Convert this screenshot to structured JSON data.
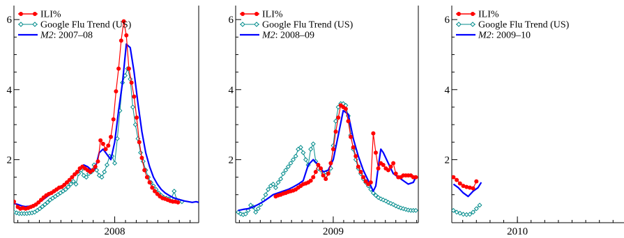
{
  "colors": {
    "ili": "#ff0000",
    "google": "#008b8b",
    "m2": "#0000ff",
    "axis": "#000000"
  },
  "chart_data": [
    {
      "type": "line",
      "xlim": [
        2007.22,
        2008.65
      ],
      "ylim": [
        0.2,
        6.4
      ],
      "ytick_labels": [
        "2",
        "4",
        "6"
      ],
      "ytick_values": [
        2,
        4,
        6
      ],
      "xtick_labels": [
        "2008"
      ],
      "xtick_values": [
        2008
      ],
      "legend": {
        "placement": "top-left",
        "entries": [
          "ILI%",
          "Google Flu Trend (US)"
        ],
        "model_italic": "M2",
        "model_suffix": ": 2007–08"
      },
      "series": [
        {
          "name": "ILI%",
          "style": "red-dots",
          "x": [
            2007.22,
            2007.25,
            2007.27,
            2007.29,
            2007.31,
            2007.33,
            2007.35,
            2007.37,
            2007.39,
            2007.41,
            2007.43,
            2007.45,
            2007.47,
            2007.49,
            2007.51,
            2007.53,
            2007.55,
            2007.57,
            2007.59,
            2007.61,
            2007.63,
            2007.65,
            2007.67,
            2007.69,
            2007.71,
            2007.73,
            2007.75,
            2007.77,
            2007.79,
            2007.81,
            2007.83,
            2007.85,
            2007.87,
            2007.89,
            2007.91,
            2007.93,
            2007.95,
            2007.97,
            2007.99,
            2008.01,
            2008.03,
            2008.05,
            2008.07,
            2008.09,
            2008.11,
            2008.13,
            2008.15,
            2008.17,
            2008.19,
            2008.21,
            2008.23,
            2008.25,
            2008.27,
            2008.29,
            2008.31,
            2008.33,
            2008.35,
            2008.37,
            2008.39,
            2008.41,
            2008.43,
            2008.45,
            2008.47,
            2008.49
          ],
          "y": [
            0.8,
            0.65,
            0.6,
            0.62,
            0.6,
            0.62,
            0.65,
            0.68,
            0.72,
            0.78,
            0.85,
            0.92,
            0.98,
            1.02,
            1.05,
            1.1,
            1.15,
            1.2,
            1.22,
            1.28,
            1.35,
            1.42,
            1.5,
            1.58,
            1.65,
            1.75,
            1.8,
            1.75,
            1.7,
            1.65,
            1.7,
            1.8,
            1.95,
            2.55,
            2.45,
            2.3,
            2.4,
            2.65,
            3.15,
            3.95,
            4.6,
            5.4,
            5.95,
            5.55,
            4.6,
            4.2,
            3.8,
            3.2,
            2.5,
            2.05,
            1.7,
            1.5,
            1.35,
            1.2,
            1.1,
            1.02,
            0.95,
            0.9,
            0.88,
            0.85,
            0.82,
            0.8,
            0.8,
            0.78
          ]
        },
        {
          "name": "Google Flu Trend (US)",
          "style": "teal-diamonds",
          "x": [
            2007.22,
            2007.24,
            2007.26,
            2007.28,
            2007.3,
            2007.32,
            2007.34,
            2007.36,
            2007.38,
            2007.4,
            2007.42,
            2007.44,
            2007.46,
            2007.48,
            2007.5,
            2007.52,
            2007.54,
            2007.56,
            2007.58,
            2007.6,
            2007.62,
            2007.64,
            2007.66,
            2007.68,
            2007.7,
            2007.72,
            2007.74,
            2007.76,
            2007.78,
            2007.8,
            2007.82,
            2007.84,
            2007.86,
            2007.88,
            2007.9,
            2007.92,
            2007.94,
            2007.96,
            2007.98,
            2008.0,
            2008.02,
            2008.04,
            2008.06,
            2008.08,
            2008.1,
            2008.12,
            2008.14,
            2008.16,
            2008.18,
            2008.2,
            2008.22,
            2008.24,
            2008.26,
            2008.28,
            2008.3,
            2008.32,
            2008.34,
            2008.36,
            2008.38,
            2008.4,
            2008.42,
            2008.44,
            2008.46,
            2008.48,
            2008.5,
            2008.52
          ],
          "y": [
            0.5,
            0.48,
            0.46,
            0.46,
            0.46,
            0.46,
            0.47,
            0.48,
            0.5,
            0.55,
            0.6,
            0.66,
            0.72,
            0.78,
            0.85,
            0.9,
            0.95,
            1.0,
            1.05,
            1.1,
            1.15,
            1.22,
            1.3,
            1.38,
            1.3,
            1.6,
            1.7,
            1.55,
            1.5,
            1.6,
            1.65,
            1.85,
            1.7,
            1.55,
            1.5,
            1.65,
            1.85,
            2.1,
            2.1,
            1.9,
            2.6,
            3.4,
            4.2,
            4.4,
            4.6,
            4.3,
            3.5,
            3.0,
            2.6,
            2.2,
            1.95,
            1.7,
            1.5,
            1.35,
            1.25,
            1.15,
            1.05,
            0.98,
            0.92,
            0.9,
            0.88,
            0.9,
            1.1,
            0.85,
            0.82,
            0.8
          ]
        },
        {
          "name": "M2: 2007–08",
          "style": "blue-line",
          "x": [
            2007.22,
            2007.25,
            2007.28,
            2007.31,
            2007.34,
            2007.37,
            2007.4,
            2007.43,
            2007.46,
            2007.49,
            2007.52,
            2007.55,
            2007.58,
            2007.61,
            2007.64,
            2007.67,
            2007.7,
            2007.73,
            2007.76,
            2007.79,
            2007.82,
            2007.85,
            2007.88,
            2007.91,
            2007.94,
            2007.97,
            2008.0,
            2008.03,
            2008.06,
            2008.09,
            2008.12,
            2008.15,
            2008.18,
            2008.21,
            2008.24,
            2008.27,
            2008.3,
            2008.33,
            2008.36,
            2008.39,
            2008.42,
            2008.45,
            2008.48,
            2008.51,
            2008.54,
            2008.57,
            2008.6,
            2008.63,
            2008.65
          ],
          "y": [
            0.75,
            0.72,
            0.68,
            0.66,
            0.67,
            0.7,
            0.75,
            0.82,
            0.9,
            0.98,
            1.05,
            1.12,
            1.2,
            1.3,
            1.4,
            1.5,
            1.6,
            1.72,
            1.85,
            1.8,
            1.7,
            1.75,
            2.2,
            2.3,
            2.15,
            2.0,
            2.5,
            3.4,
            4.2,
            5.3,
            5.2,
            4.5,
            3.6,
            2.8,
            2.2,
            1.8,
            1.5,
            1.3,
            1.15,
            1.05,
            0.98,
            0.92,
            0.88,
            0.85,
            0.82,
            0.8,
            0.78,
            0.8,
            0.78
          ]
        }
      ]
    },
    {
      "type": "line",
      "xlim": [
        2008.22,
        2009.68
      ],
      "ylim": [
        0.2,
        6.4
      ],
      "ytick_labels": [
        "2",
        "4",
        "6"
      ],
      "ytick_values": [
        2,
        4,
        6
      ],
      "xtick_labels": [
        "2009"
      ],
      "xtick_values": [
        2009
      ],
      "legend": {
        "placement": "top-left",
        "entries": [
          "ILI%",
          "Google Flu Trend (US)"
        ],
        "model_italic": "M2",
        "model_suffix": ": 2008–09"
      },
      "series": [
        {
          "name": "ILI%",
          "style": "red-dots",
          "x": [
            2008.54,
            2008.56,
            2008.58,
            2008.6,
            2008.62,
            2008.64,
            2008.66,
            2008.68,
            2008.7,
            2008.72,
            2008.74,
            2008.76,
            2008.78,
            2008.8,
            2008.82,
            2008.84,
            2008.86,
            2008.88,
            2008.9,
            2008.92,
            2008.94,
            2008.96,
            2008.98,
            2009.0,
            2009.02,
            2009.04,
            2009.06,
            2009.08,
            2009.1,
            2009.12,
            2009.14,
            2009.16,
            2009.18,
            2009.2,
            2009.22,
            2009.24,
            2009.26,
            2009.28,
            2009.3,
            2009.32,
            2009.34,
            2009.36,
            2009.38,
            2009.4,
            2009.42,
            2009.44,
            2009.46,
            2009.48,
            2009.5,
            2009.52,
            2009.54,
            2009.56,
            2009.58,
            2009.6,
            2009.62,
            2009.64,
            2009.66
          ],
          "y": [
            0.95,
            0.98,
            1.0,
            1.03,
            1.05,
            1.08,
            1.1,
            1.12,
            1.15,
            1.2,
            1.25,
            1.3,
            1.32,
            1.35,
            1.4,
            1.5,
            1.65,
            1.85,
            1.75,
            1.55,
            1.45,
            1.6,
            1.9,
            2.3,
            2.8,
            3.2,
            3.55,
            3.5,
            3.45,
            3.1,
            2.65,
            2.35,
            2.1,
            1.8,
            1.65,
            1.5,
            1.38,
            1.3,
            1.35,
            2.75,
            2.2,
            1.75,
            1.9,
            1.85,
            1.75,
            1.7,
            1.8,
            1.9,
            1.6,
            1.5,
            1.5,
            1.55,
            1.55,
            1.55,
            1.55,
            1.5,
            1.5
          ]
        },
        {
          "name": "Google Flu Trend (US)",
          "style": "teal-diamonds",
          "x": [
            2008.24,
            2008.26,
            2008.28,
            2008.3,
            2008.32,
            2008.34,
            2008.36,
            2008.38,
            2008.4,
            2008.42,
            2008.44,
            2008.46,
            2008.48,
            2008.5,
            2008.52,
            2008.54,
            2008.56,
            2008.58,
            2008.6,
            2008.62,
            2008.64,
            2008.66,
            2008.68,
            2008.7,
            2008.72,
            2008.74,
            2008.76,
            2008.78,
            2008.8,
            2008.82,
            2008.84,
            2008.86,
            2008.88,
            2008.9,
            2008.92,
            2008.94,
            2008.96,
            2008.98,
            2009.0,
            2009.02,
            2009.04,
            2009.06,
            2009.08,
            2009.1,
            2009.12,
            2009.14,
            2009.16,
            2009.18,
            2009.2,
            2009.22,
            2009.24,
            2009.26,
            2009.28,
            2009.3,
            2009.32,
            2009.34,
            2009.36,
            2009.38,
            2009.4,
            2009.42,
            2009.44,
            2009.46,
            2009.48,
            2009.5,
            2009.52,
            2009.54,
            2009.56,
            2009.58,
            2009.6,
            2009.62,
            2009.64,
            2009.66
          ],
          "y": [
            0.5,
            0.45,
            0.43,
            0.45,
            0.55,
            0.7,
            0.65,
            0.5,
            0.6,
            0.72,
            0.85,
            1.0,
            1.15,
            1.25,
            1.3,
            1.2,
            1.35,
            1.45,
            1.6,
            1.7,
            1.8,
            1.9,
            2.0,
            2.1,
            2.3,
            2.35,
            2.2,
            2.0,
            1.85,
            2.3,
            2.45,
            1.95,
            1.75,
            1.7,
            1.6,
            1.55,
            1.65,
            1.75,
            2.4,
            3.1,
            3.5,
            3.6,
            3.6,
            3.55,
            3.25,
            2.7,
            2.3,
            2.0,
            1.75,
            1.6,
            1.45,
            1.35,
            1.25,
            1.15,
            1.05,
            0.98,
            0.92,
            0.88,
            0.85,
            0.82,
            0.78,
            0.75,
            0.72,
            0.68,
            0.65,
            0.62,
            0.6,
            0.58,
            0.56,
            0.55,
            0.55,
            0.55
          ]
        },
        {
          "name": "M2: 2008–09",
          "style": "blue-line",
          "x": [
            2008.24,
            2008.28,
            2008.32,
            2008.36,
            2008.4,
            2008.44,
            2008.48,
            2008.52,
            2008.56,
            2008.6,
            2008.64,
            2008.68,
            2008.72,
            2008.76,
            2008.8,
            2008.84,
            2008.88,
            2008.92,
            2008.96,
            2009.0,
            2009.04,
            2009.08,
            2009.12,
            2009.16,
            2009.2,
            2009.24,
            2009.28,
            2009.32,
            2009.34,
            2009.36,
            2009.38,
            2009.4,
            2009.44,
            2009.48,
            2009.52,
            2009.56,
            2009.6,
            2009.64,
            2009.66
          ],
          "y": [
            0.55,
            0.58,
            0.6,
            0.65,
            0.72,
            0.8,
            0.9,
            1.0,
            1.05,
            1.1,
            1.15,
            1.22,
            1.3,
            1.4,
            1.85,
            2.0,
            1.85,
            1.65,
            1.7,
            2.0,
            2.7,
            3.4,
            3.3,
            2.6,
            2.1,
            1.7,
            1.4,
            1.1,
            1.25,
            1.8,
            2.3,
            2.2,
            1.9,
            1.6,
            1.5,
            1.4,
            1.3,
            1.35,
            1.5
          ]
        }
      ]
    },
    {
      "type": "line",
      "xlim": [
        2009.6,
        2010.65
      ],
      "ylim": [
        0.2,
        6.4
      ],
      "ytick_labels": [
        "2",
        "4",
        "6"
      ],
      "ytick_values": [
        2,
        4,
        6
      ],
      "xtick_labels": [
        "2010"
      ],
      "xtick_values": [
        2010
      ],
      "legend": {
        "placement": "top-left",
        "entries": [
          "ILI%",
          "Google Flu Trend (US)"
        ],
        "model_italic": "M2",
        "model_suffix": ": 2009–10"
      },
      "series": [
        {
          "name": "ILI%",
          "style": "red-dots",
          "x": [
            2009.61,
            2009.63,
            2009.65,
            2009.67,
            2009.69,
            2009.71,
            2009.73,
            2009.75
          ],
          "y": [
            1.5,
            1.42,
            1.32,
            1.25,
            1.22,
            1.2,
            1.18,
            1.38
          ]
        },
        {
          "name": "Google Flu Trend (US)",
          "style": "teal-diamonds",
          "x": [
            2009.61,
            2009.63,
            2009.65,
            2009.67,
            2009.69,
            2009.71,
            2009.73,
            2009.75,
            2009.77
          ],
          "y": [
            0.55,
            0.5,
            0.47,
            0.44,
            0.43,
            0.44,
            0.5,
            0.6,
            0.7
          ]
        },
        {
          "name": "M2: 2009–10",
          "style": "blue-line",
          "x": [
            2009.61,
            2009.64,
            2009.67,
            2009.7,
            2009.73,
            2009.76,
            2009.78
          ],
          "y": [
            1.3,
            1.2,
            1.05,
            0.95,
            1.1,
            1.2,
            1.35
          ]
        }
      ]
    }
  ]
}
